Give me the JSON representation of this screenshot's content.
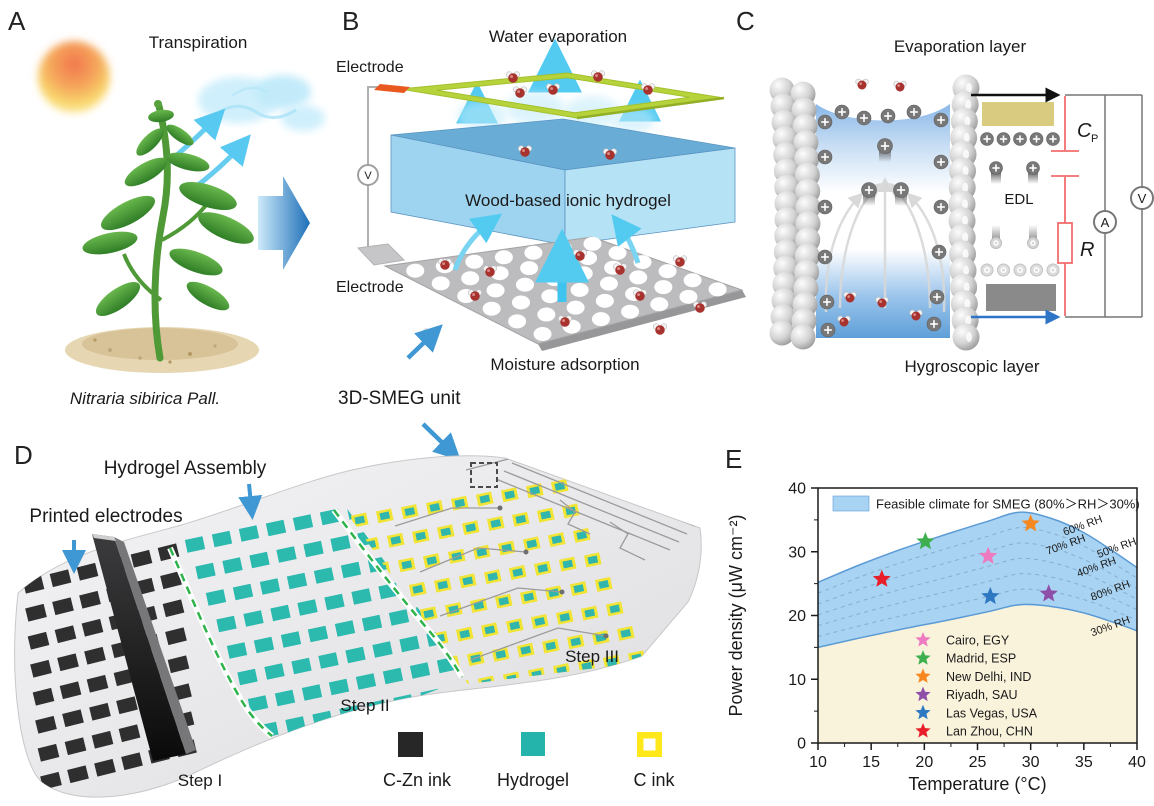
{
  "panel_a": {
    "label": "A",
    "transpiration": "Transpiration",
    "species": "Nitraria sibirica Pall."
  },
  "panel_b": {
    "label": "B",
    "water_evaporation": "Water evaporation",
    "electrode_top": "Electrode",
    "electrode_bottom": "Electrode",
    "hydrogel": "Wood-based ionic hydrogel",
    "moisture_adsorption": "Moisture adsorption",
    "smeg_unit": "3D-SMEG unit",
    "voltmeter": "V"
  },
  "panel_c": {
    "label": "C",
    "evaporation_layer": "Evaporation layer",
    "hygroscopic_layer": "Hygroscopic layer",
    "edl": "EDL",
    "cp_main": "C",
    "cp_sub": "P",
    "resistor": "R",
    "ammeter": "A",
    "voltmeter": "V"
  },
  "panel_d": {
    "label": "D",
    "printed_electrodes": "Printed electrodes",
    "hydrogel_assembly": "Hydrogel Assembly",
    "step1": "Step I",
    "step2": "Step II",
    "step3": "Step III",
    "legend": [
      {
        "label": "C-Zn ink",
        "color": "#272727",
        "style": "solid"
      },
      {
        "label": "Hydrogel",
        "color": "#25b4ab",
        "style": "solid"
      },
      {
        "label": "C ink",
        "color": "#ffe81a",
        "style": "hollow"
      }
    ]
  },
  "panel_e": {
    "label": "E"
  },
  "chart_data": {
    "type": "area",
    "legend_label": "Feasible climate for SMEG (80%＞RH＞30%)",
    "xlabel": "Temperature (°C)",
    "ylabel": "Power density (μW cm⁻²)",
    "xlim": [
      10,
      40
    ],
    "ylim": [
      0,
      40
    ],
    "xticks": [
      10,
      15,
      20,
      25,
      30,
      35,
      40
    ],
    "yticks": [
      0,
      10,
      20,
      30,
      40
    ],
    "grid": false,
    "band": {
      "x": [
        10,
        14,
        18,
        22,
        26,
        29,
        32,
        35,
        38,
        40
      ],
      "top": [
        25.2,
        28.0,
        30.5,
        32.7,
        34.8,
        36.2,
        35.2,
        33.0,
        29.8,
        27.5
      ],
      "bottom": [
        15.0,
        16.5,
        17.9,
        19.2,
        20.6,
        21.7,
        21.4,
        20.4,
        18.8,
        17.6
      ],
      "fill": "#a9d3f2",
      "edge": "#5b9bd5",
      "below_fill": "#faf3dc",
      "dashed_levels": 5
    },
    "rh_labels": [
      {
        "text": "60% RH",
        "x": 35.0,
        "y": 33.6
      },
      {
        "text": "50% RH",
        "x": 38.2,
        "y": 30.1
      },
      {
        "text": "70% RH",
        "x": 33.4,
        "y": 30.6
      },
      {
        "text": "40% RH",
        "x": 36.3,
        "y": 27.1
      },
      {
        "text": "80% RH",
        "x": 37.6,
        "y": 23.4
      },
      {
        "text": "30% RH",
        "x": 37.6,
        "y": 17.8
      }
    ],
    "points": [
      {
        "city": "Cairo, EGY",
        "color": "#ee7bc0",
        "x": 26.0,
        "y": 29.3
      },
      {
        "city": "Madrid, ESP",
        "color": "#3daf4e",
        "x": 20.1,
        "y": 31.6
      },
      {
        "city": "New Delhi, IND",
        "color": "#f6881f",
        "x": 30.0,
        "y": 34.4
      },
      {
        "city": "Riyadh, SAU",
        "color": "#8e4fa8",
        "x": 31.7,
        "y": 23.4
      },
      {
        "city": "Las Vegas, USA",
        "color": "#2e78c2",
        "x": 26.2,
        "y": 23.0
      },
      {
        "city": "Lan Zhou, CHN",
        "color": "#e81f2a",
        "x": 16.0,
        "y": 25.7
      }
    ]
  }
}
